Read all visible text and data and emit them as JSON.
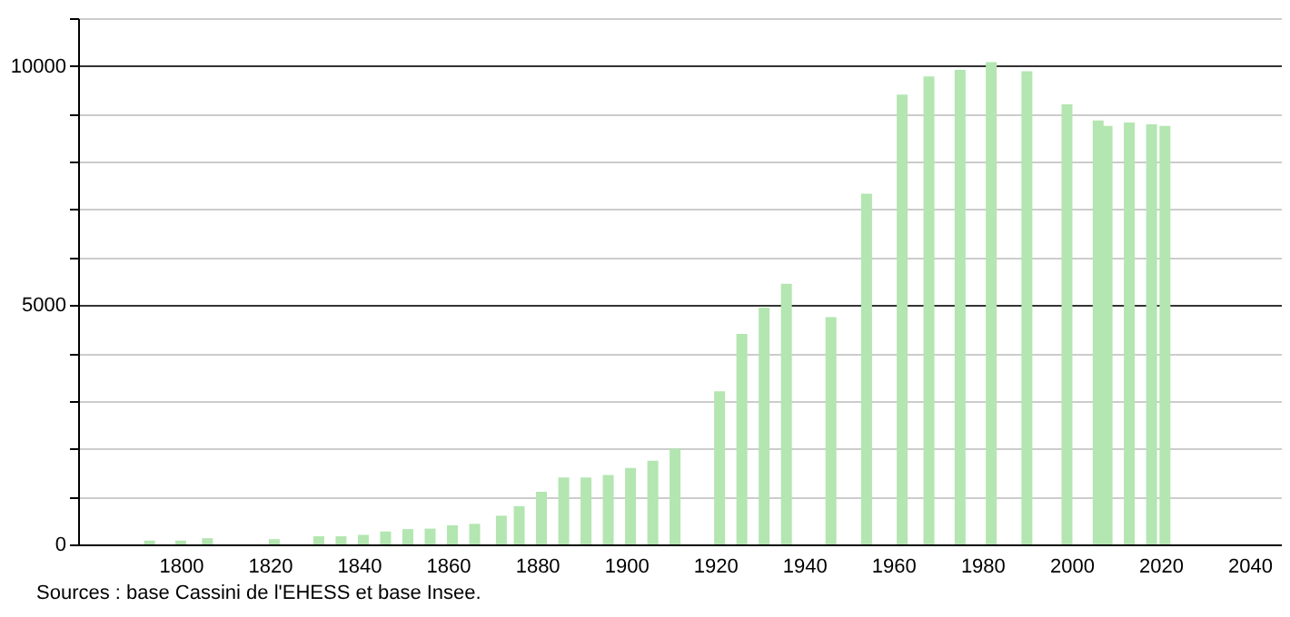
{
  "chart_data": {
    "type": "bar",
    "x": [
      1793,
      1800,
      1806,
      1821,
      1831,
      1836,
      1841,
      1846,
      1851,
      1856,
      1861,
      1866,
      1872,
      1876,
      1881,
      1886,
      1891,
      1896,
      1901,
      1906,
      1911,
      1921,
      1926,
      1931,
      1936,
      1946,
      1954,
      1962,
      1968,
      1975,
      1982,
      1990,
      1999,
      2006,
      2008,
      2013,
      2018,
      2021
    ],
    "values": [
      80,
      80,
      130,
      110,
      170,
      170,
      200,
      270,
      320,
      330,
      400,
      430,
      600,
      800,
      1100,
      1400,
      1400,
      1450,
      1600,
      1750,
      2000,
      3200,
      4400,
      4950,
      5450,
      4750,
      7330,
      9400,
      9780,
      9920,
      10080,
      9890,
      9200,
      8860,
      8750,
      8820,
      8780,
      8750
    ],
    "color": "#b3e6b0",
    "xlim": [
      1779,
      2045
    ],
    "xticks": [
      1800,
      1820,
      1840,
      1860,
      1880,
      1900,
      1920,
      1940,
      1960,
      1980,
      2000,
      2020,
      2040
    ],
    "ylim": [
      0,
      11000
    ],
    "yticks": [
      0,
      {
        "value": 1000,
        "label": null
      },
      {
        "value": 2000,
        "label": null
      },
      {
        "value": 3000,
        "label": null
      },
      {
        "value": 4000,
        "label": null
      },
      5000,
      {
        "value": 6000,
        "label": null
      },
      {
        "value": 7000,
        "label": null
      },
      {
        "value": 8000,
        "label": null
      },
      {
        "value": 9000,
        "label": null
      },
      10000,
      {
        "value": 11000,
        "label": null
      }
    ],
    "grid": "y",
    "annotations": [
      "Sources : base Cassini de l'EHESS et base Insee."
    ]
  }
}
